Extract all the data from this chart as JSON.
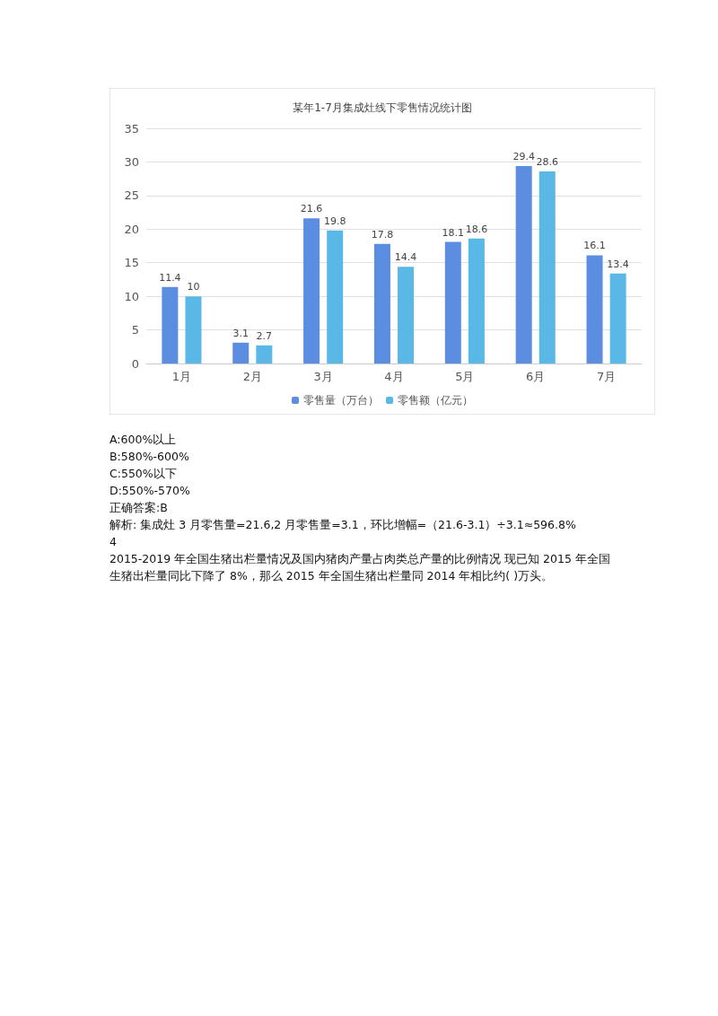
{
  "chart_data": {
    "type": "bar",
    "title": "某年1-7月集成灶线下零售情况统计图",
    "categories": [
      "1月",
      "2月",
      "3月",
      "4月",
      "5月",
      "6月",
      "7月"
    ],
    "series": [
      {
        "name": "零售量（万台）",
        "color": "#5b8ee0",
        "values": [
          11.4,
          3.1,
          21.6,
          17.8,
          18.1,
          29.4,
          16.1
        ]
      },
      {
        "name": "零售额（亿元）",
        "color": "#5ab8e6",
        "values": [
          10,
          2.7,
          19.8,
          14.4,
          18.6,
          28.6,
          13.4
        ]
      }
    ],
    "ylim": [
      0,
      35
    ],
    "yticks": [
      0,
      5,
      10,
      15,
      20,
      25,
      30,
      35
    ],
    "grid": "y",
    "legend": "bottom",
    "data_labels": true,
    "annotations": [
      "A:600%以上",
      "B:580%-600%",
      "C:550%以下",
      "D:550%-570%",
      "正确答案:B",
      "解析: 集成灶 3 月零售量=21.6,2 月零售量=3.1，环比增幅=（21.6-3.1）÷3.1≈596.8%",
      "4",
      "2015-2019 年全国生猪出栏量情况及国内猪肉产量占肉类总产量的比例情况  现已知 2015 年全国生猪出栏量同比下降了 8%，那么 2015 年全国生猪出栏量同 2014 年相比约( )万头。"
    ]
  }
}
